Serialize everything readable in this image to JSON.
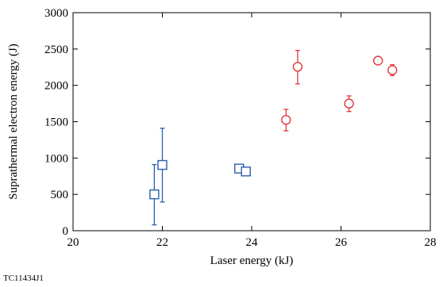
{
  "figure_id": "TC11434J1",
  "chart_data": {
    "type": "scatter",
    "title": "",
    "xlabel": "Laser energy (kJ)",
    "ylabel": "Suprathermal electron energy (J)",
    "xlim": [
      20,
      28
    ],
    "ylim": [
      0,
      3000
    ],
    "x_ticks": [
      "20",
      "22",
      "24",
      "26",
      "28"
    ],
    "y_ticks": [
      "0",
      "500",
      "1000",
      "1500",
      "2000",
      "2500",
      "3000"
    ],
    "grid": false,
    "legend": "none",
    "series": [
      {
        "marker": "square",
        "color": "#2b5fad",
        "points": [
          {
            "x": 21.82,
            "y": 500,
            "err_low": 80,
            "err_high": 910
          },
          {
            "x": 22.0,
            "y": 905,
            "err_low": 395,
            "err_high": 1410
          },
          {
            "x": 23.72,
            "y": 855,
            "err_low": 835,
            "err_high": 875
          },
          {
            "x": 23.87,
            "y": 815,
            "err_low": 760,
            "err_high": 870
          }
        ]
      },
      {
        "marker": "circle",
        "color": "#e03a3e",
        "points": [
          {
            "x": 24.77,
            "y": 1525,
            "err_low": 1375,
            "err_high": 1670
          },
          {
            "x": 25.03,
            "y": 2255,
            "err_low": 2020,
            "err_high": 2480
          },
          {
            "x": 26.18,
            "y": 1750,
            "err_low": 1640,
            "err_high": 1855
          },
          {
            "x": 26.83,
            "y": 2340,
            "err_low": 2310,
            "err_high": 2370
          },
          {
            "x": 27.15,
            "y": 2210,
            "err_low": 2135,
            "err_high": 2285
          }
        ]
      }
    ]
  }
}
